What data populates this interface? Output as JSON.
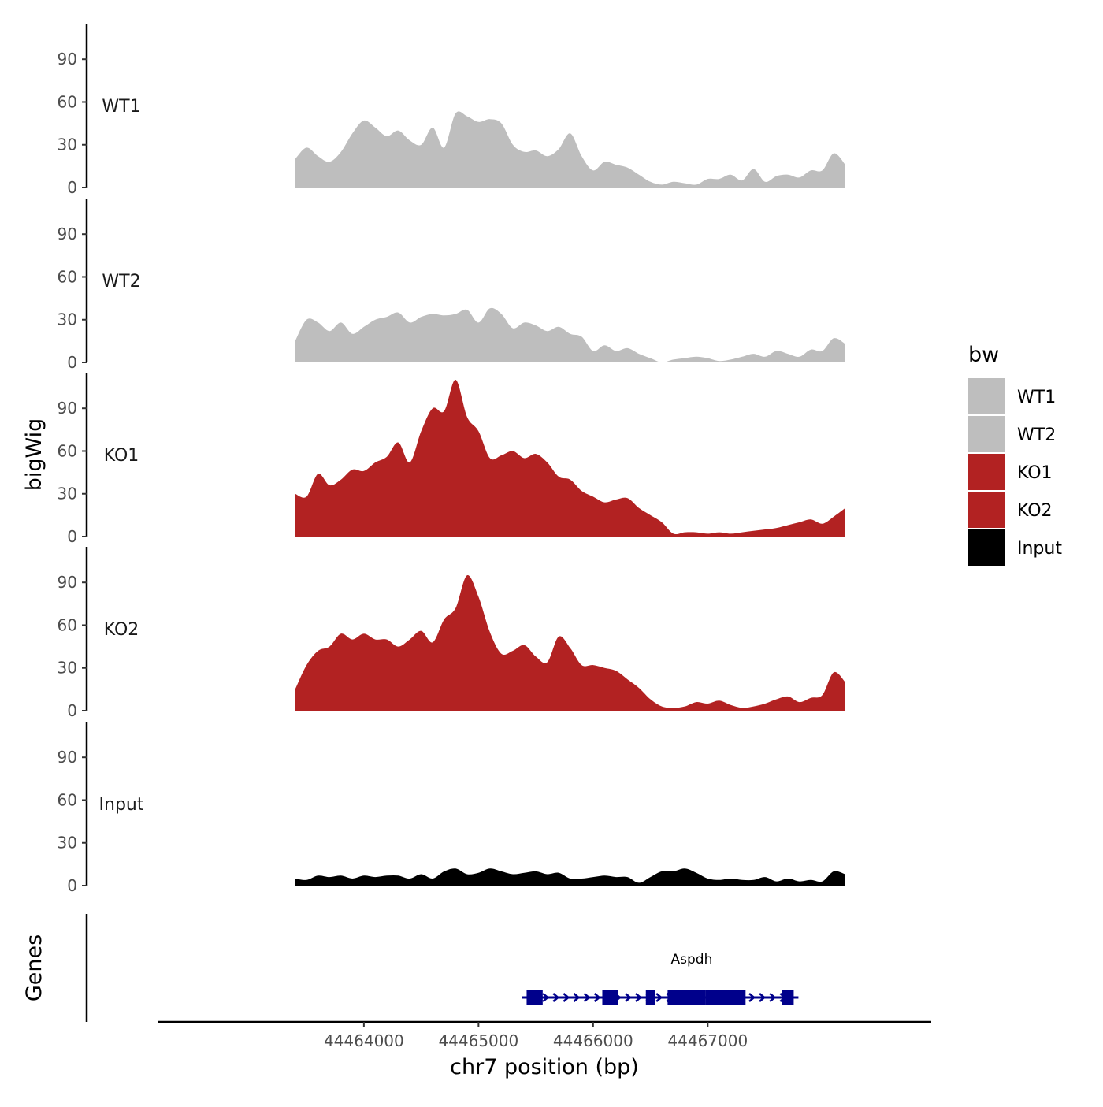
{
  "chart_data": {
    "type": "area",
    "chromosome": "chr7",
    "xlabel": "chr7 position (bp)",
    "ylabel": "bigWig",
    "genes_label": "Genes",
    "xlim": [
      44462200,
      44468950
    ],
    "x_ticks": [
      44464000,
      44465000,
      44466000,
      44467000
    ],
    "x_tick_labels": [
      "44464000",
      "44465000",
      "44466000",
      "44467000"
    ],
    "ylim": [
      0,
      115
    ],
    "y_ticks": [
      0,
      30,
      60,
      90
    ],
    "y_tick_labels": [
      "0",
      "30",
      "60",
      "90"
    ],
    "x_start": 44463400,
    "x_step": 100,
    "legend": {
      "title": "bw",
      "entries": [
        {
          "label": "WT1",
          "color": "#bebebe"
        },
        {
          "label": "WT2",
          "color": "#bebebe"
        },
        {
          "label": "KO1",
          "color": "#b22222"
        },
        {
          "label": "KO2",
          "color": "#b22222"
        },
        {
          "label": "Input",
          "color": "#000000"
        }
      ]
    },
    "series": [
      {
        "name": "WT1",
        "color": "#bebebe",
        "values": [
          20,
          28,
          22,
          18,
          25,
          38,
          47,
          42,
          36,
          40,
          33,
          30,
          42,
          28,
          52,
          50,
          46,
          48,
          45,
          30,
          25,
          26,
          22,
          27,
          38,
          22,
          12,
          18,
          16,
          14,
          9,
          4,
          2,
          4,
          3,
          2,
          6,
          6,
          9,
          5,
          13,
          4,
          8,
          9,
          7,
          12,
          12,
          24,
          16
        ]
      },
      {
        "name": "WT2",
        "color": "#bebebe",
        "values": [
          15,
          30,
          28,
          22,
          28,
          20,
          25,
          30,
          32,
          35,
          28,
          32,
          34,
          33,
          34,
          37,
          28,
          38,
          34,
          24,
          28,
          26,
          22,
          25,
          20,
          18,
          8,
          12,
          8,
          10,
          6,
          3,
          0,
          2,
          3,
          4,
          3,
          1,
          2,
          4,
          6,
          4,
          8,
          6,
          4,
          9,
          8,
          17,
          13
        ]
      },
      {
        "name": "KO1",
        "color": "#b22222",
        "values": [
          30,
          28,
          44,
          36,
          40,
          47,
          46,
          52,
          56,
          66,
          52,
          74,
          90,
          88,
          110,
          84,
          74,
          55,
          57,
          60,
          55,
          58,
          52,
          42,
          40,
          32,
          28,
          24,
          26,
          27,
          20,
          15,
          10,
          2,
          3,
          3,
          2,
          3,
          2,
          3,
          4,
          5,
          6,
          8,
          10,
          12,
          9,
          14,
          20
        ]
      },
      {
        "name": "KO2",
        "color": "#b22222",
        "values": [
          15,
          32,
          42,
          45,
          54,
          50,
          54,
          50,
          50,
          45,
          50,
          56,
          48,
          64,
          72,
          95,
          80,
          55,
          40,
          42,
          46,
          38,
          34,
          52,
          44,
          32,
          32,
          30,
          28,
          22,
          16,
          8,
          3,
          2,
          3,
          6,
          5,
          7,
          4,
          2,
          3,
          5,
          8,
          10,
          6,
          9,
          11,
          27,
          20
        ]
      },
      {
        "name": "Input",
        "color": "#000000",
        "values": [
          5,
          4,
          7,
          6,
          7,
          5,
          7,
          6,
          7,
          7,
          5,
          8,
          5,
          10,
          12,
          8,
          9,
          12,
          10,
          8,
          9,
          10,
          8,
          9,
          5,
          5,
          6,
          7,
          6,
          6,
          2,
          6,
          10,
          10,
          12,
          9,
          5,
          4,
          5,
          4,
          4,
          6,
          3,
          5,
          3,
          4,
          3,
          10,
          8
        ]
      }
    ],
    "gene": {
      "name": "Aspdh",
      "strand": "+",
      "start": 44465420,
      "end": 44467750,
      "exons": [
        [
          44465420,
          44465560
        ],
        [
          44466080,
          44466220
        ],
        [
          44466460,
          44466540
        ],
        [
          44466650,
          44466980
        ],
        [
          44466980,
          44467330
        ],
        [
          44467650,
          44467750
        ]
      ],
      "color": "#00008b"
    }
  }
}
